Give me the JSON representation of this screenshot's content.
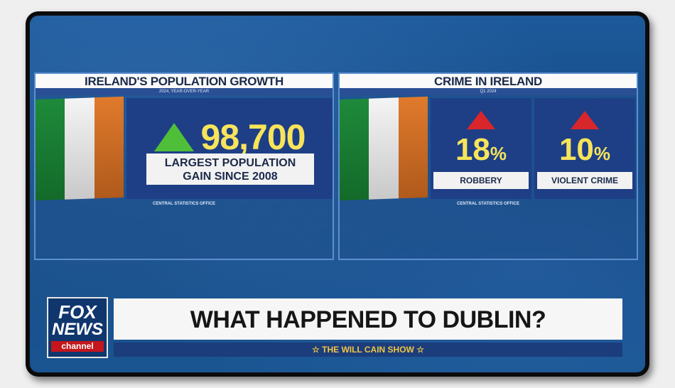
{
  "left_panel": {
    "title": "IRELAND'S POPULATION GROWTH",
    "subtitle": "2024, YEAR-OVER-YEAR",
    "value": "98,700",
    "label_line1": "LARGEST POPULATION",
    "label_line2": "GAIN SINCE 2008",
    "source": "CENTRAL STATISTICS OFFICE"
  },
  "right_panel": {
    "title": "CRIME IN IRELAND",
    "subtitle": "Q1 2024",
    "stats": [
      {
        "value": "18",
        "unit": "%",
        "label": "ROBBERY"
      },
      {
        "value": "10",
        "unit": "%",
        "label": "VIOLENT CRIME"
      }
    ],
    "source": "CENTRAL STATISTICS OFFICE"
  },
  "logo": {
    "line1": "FOX",
    "line2": "NEWS",
    "line3": "channel"
  },
  "headline": "WHAT HAPPENED TO DUBLIN?",
  "show": "☆ THE WILL CAIN SHOW ☆",
  "colors": {
    "accent_yellow": "#f7e45a",
    "up_green": "#4fbf3a",
    "up_red": "#d9262a",
    "navy": "#1e3f86"
  }
}
